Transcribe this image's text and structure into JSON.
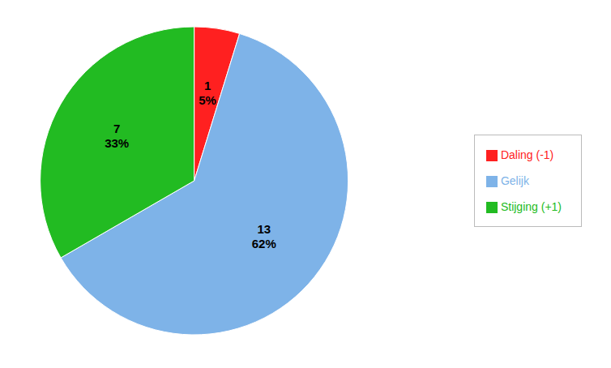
{
  "chart_data": {
    "type": "pie",
    "categories": [
      "Daling (-1)",
      "Gelijk",
      "Stijging (+1)"
    ],
    "values": [
      1,
      13,
      7
    ],
    "percentages": [
      {
        "value": 5,
        "label": "5%"
      },
      {
        "value": 62,
        "label": "62%"
      },
      {
        "value": 33,
        "label": "33%"
      }
    ],
    "colors": [
      "#FF2020",
      "#7EB3E8",
      "#22BB22"
    ],
    "data_labels": true,
    "legend": "right"
  }
}
